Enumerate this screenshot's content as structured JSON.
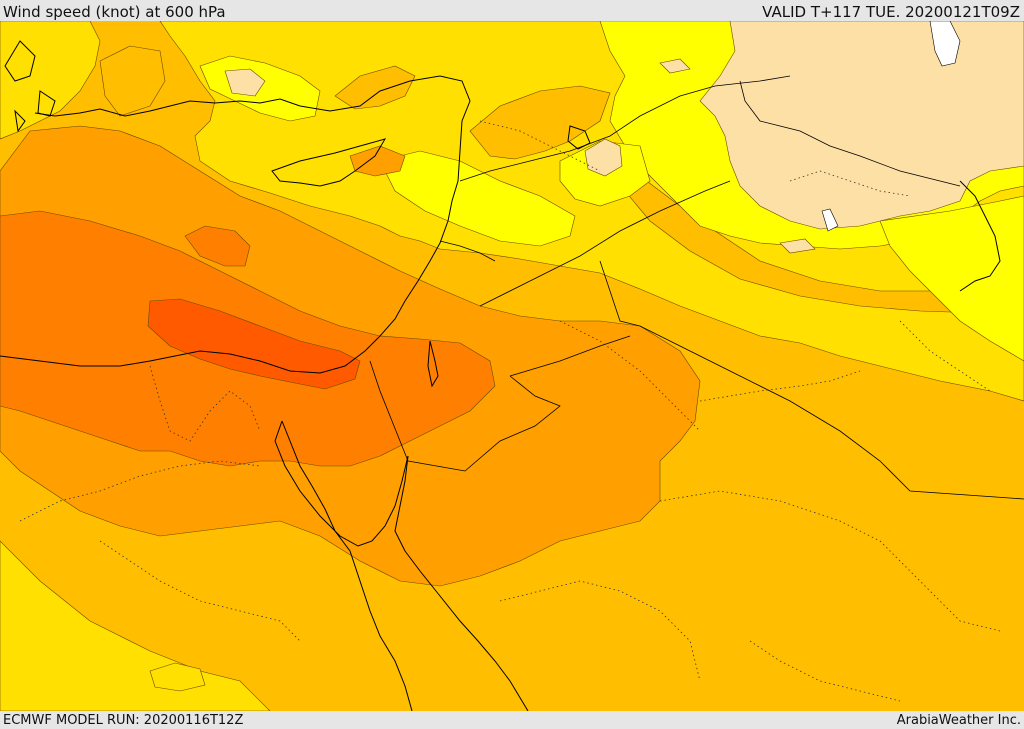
{
  "header": {
    "title": "Wind speed (knot) at 600 hPa",
    "valid": "VALID T+117 TUE. 20200121T09Z"
  },
  "footer": {
    "model_run": "ECMWF MODEL RUN: 20200116T12Z",
    "credit": "ArabiaWeather Inc."
  },
  "palette": {
    "band_15_20": "#ffffff",
    "band_20_25": "#fde0a6",
    "band_25_30": "#ffff00",
    "band_30_35": "#ffe000",
    "band_35_40": "#ffbe00",
    "band_40_45": "#ff9f00",
    "band_45_50": "#ff7f00",
    "band_50_55": "#ff5a00",
    "coast": "#000000",
    "border": "#000000"
  }
}
